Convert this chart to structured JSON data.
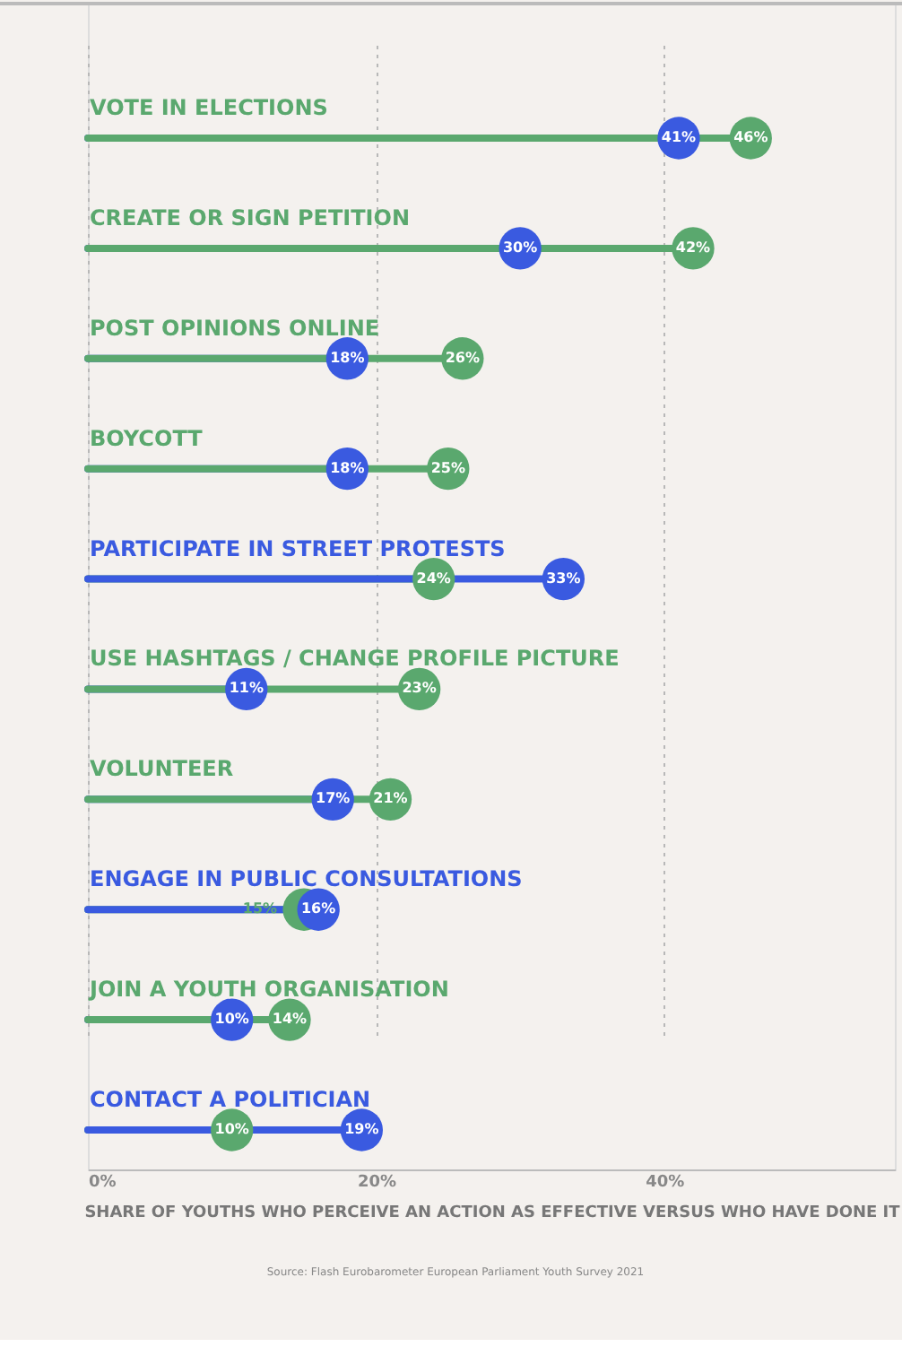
{
  "chart_data": {
    "type": "lollipop",
    "orientation": "horizontal",
    "marker": "circle",
    "grid": "x",
    "xlabel": "SHARE OF YOUTHS WHO PERCEIVE AN ACTION AS EFFECTIVE VERSUS WHO HAVE DONE IT",
    "annotations": [
      "Source: Flash Eurobarometer European Parliament Youth Survey 2021"
    ],
    "categories": [
      "VOTE IN ELECTIONS",
      "CREATE OR SIGN PETITION",
      "POST OPINIONS ONLINE",
      "BOYCOTT",
      "PARTICIPATE IN STREET PROTESTS",
      "USE HASHTAGS / CHANGE PROFILE PICTURE",
      "VOLUNTEER",
      "ENGAGE IN PUBLIC CONSULTATIONS",
      "JOIN A YOUTH ORGANISATION",
      "CONTACT A POLITICIAN"
    ],
    "xlim": [
      0,
      56
    ],
    "xticks": [
      {
        "value": 0,
        "label": "0%"
      },
      {
        "value": 20,
        "label": "20%"
      },
      {
        "value": 40,
        "label": "40%"
      }
    ],
    "series": [
      {
        "color": "#3a5ae0",
        "values": [
          41,
          30,
          18,
          18,
          33,
          11,
          17,
          16,
          10,
          19
        ],
        "value_labels": [
          "41%",
          "30%",
          "18%",
          "18%",
          "33%",
          "11%",
          "17%",
          "16%",
          "10%",
          "19%"
        ]
      },
      {
        "color": "#5aa86e",
        "values": [
          46,
          42,
          26,
          25,
          24,
          23,
          21,
          15,
          14,
          10
        ],
        "value_labels": [
          "46%",
          "42%",
          "26%",
          "25%",
          "24%",
          "23%",
          "21%",
          "15%",
          "14%",
          "10%"
        ]
      }
    ]
  }
}
